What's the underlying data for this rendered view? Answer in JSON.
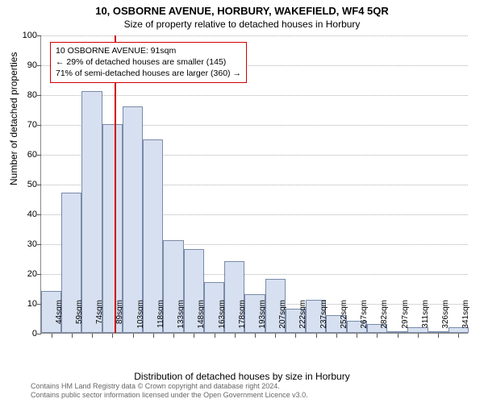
{
  "title": "10, OSBORNE AVENUE, HORBURY, WAKEFIELD, WF4 5QR",
  "subtitle": "Size of property relative to detached houses in Horbury",
  "ylabel": "Number of detached properties",
  "xlabel": "Distribution of detached houses by size in Horbury",
  "chart": {
    "type": "histogram",
    "ylim": [
      0,
      100
    ],
    "ytick_step": 10,
    "bar_fill": "#d6e0f0",
    "bar_stroke": "#7a8aa8",
    "grid_color": "#b0b0b0",
    "marker_color": "#d00000",
    "marker_x_sqm": 91,
    "bin_start": 37,
    "bin_width": 15,
    "categories": [
      "44sqm",
      "59sqm",
      "74sqm",
      "89sqm",
      "103sqm",
      "118sqm",
      "133sqm",
      "148sqm",
      "163sqm",
      "178sqm",
      "193sqm",
      "207sqm",
      "222sqm",
      "237sqm",
      "252sqm",
      "267sqm",
      "282sqm",
      "297sqm",
      "311sqm",
      "326sqm",
      "341sqm"
    ],
    "values": [
      14,
      47,
      81,
      70,
      76,
      65,
      31,
      28,
      17,
      24,
      13,
      18,
      8,
      11,
      6,
      4,
      3,
      0,
      2,
      0,
      2
    ]
  },
  "info_box": {
    "line1": "10 OSBORNE AVENUE: 91sqm",
    "line2": "← 29% of detached houses are smaller (145)",
    "line3": "71% of semi-detached houses are larger (360) →"
  },
  "footnote": {
    "line1": "Contains HM Land Registry data © Crown copyright and database right 2024.",
    "line2": "Contains public sector information licensed under the Open Government Licence v3.0."
  }
}
